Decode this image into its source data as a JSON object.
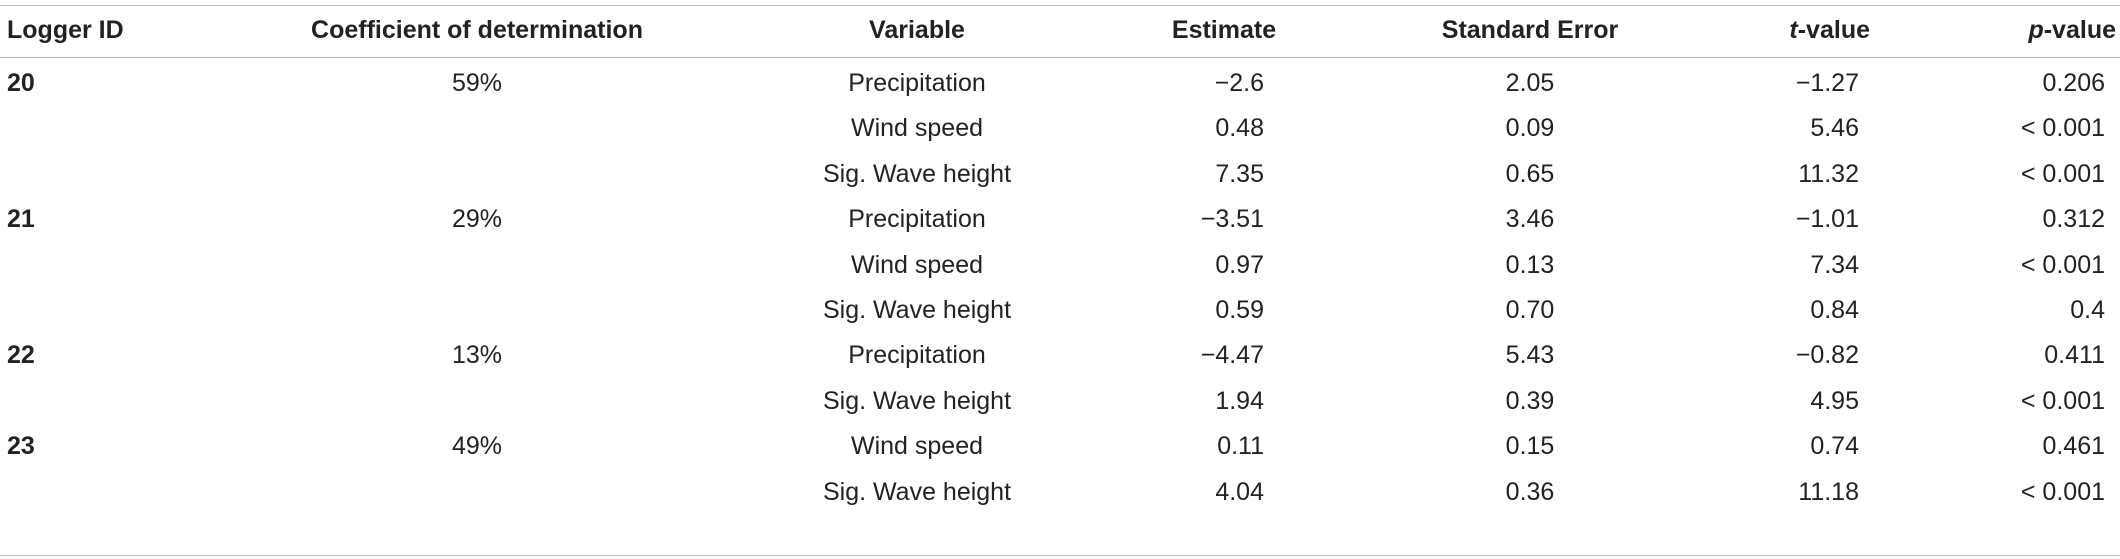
{
  "table": {
    "header": [
      "Logger ID",
      "Coefficient of determination",
      "Variable",
      "Estimate",
      "Standard Error",
      {
        "italic": "t",
        "text": "-value"
      },
      {
        "italic": "p",
        "text": "-value"
      }
    ],
    "groups": [
      {
        "logger_id": "20",
        "r2": "59%",
        "rows": [
          [
            "Precipitation",
            "−2.6",
            "2.05",
            "−1.27",
            "0.206"
          ],
          [
            "Wind speed",
            "0.48",
            "0.09",
            "5.46",
            "< 0.001"
          ],
          [
            "Sig. Wave height",
            "7.35",
            "0.65",
            "11.32",
            "< 0.001"
          ]
        ]
      },
      {
        "logger_id": "21",
        "r2": "29%",
        "rows": [
          [
            "Precipitation",
            "−3.51",
            "3.46",
            "−1.01",
            "0.312"
          ],
          [
            "Wind speed",
            "0.97",
            "0.13",
            "7.34",
            "< 0.001"
          ],
          [
            "Sig. Wave height",
            "0.59",
            "0.70",
            "0.84",
            "0.4"
          ]
        ]
      },
      {
        "logger_id": "22",
        "r2": "13%",
        "rows": [
          [
            "Precipitation",
            "−4.47",
            "5.43",
            "−0.82",
            "0.411"
          ],
          [
            "Sig. Wave height",
            "1.94",
            "0.39",
            "4.95",
            "< 0.001"
          ]
        ]
      },
      {
        "logger_id": "23",
        "r2": "49%",
        "rows": [
          [
            "Wind speed",
            "0.11",
            "0.15",
            "0.74",
            "0.461"
          ],
          [
            "Sig. Wave height",
            "4.04",
            "0.36",
            "11.18",
            "< 0.001"
          ]
        ]
      }
    ]
  }
}
